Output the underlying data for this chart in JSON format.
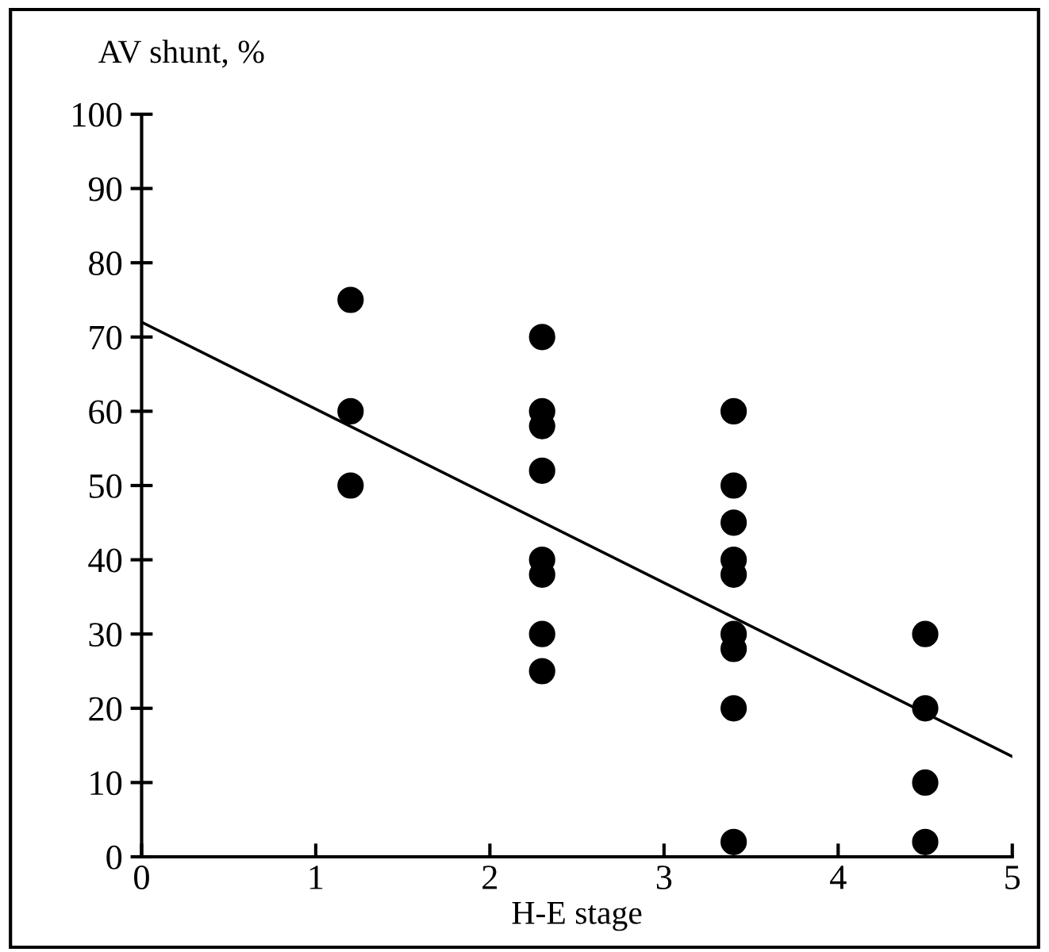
{
  "chart_data": {
    "type": "scatter",
    "xlabel": "H-E stage",
    "ylabel": "AV shunt, %",
    "marker": "circle",
    "grid": false,
    "xlim": [
      0,
      5
    ],
    "ylim": [
      0,
      100
    ],
    "xticks": [
      0,
      1,
      2,
      3,
      4,
      5
    ],
    "yticks": [
      0,
      10,
      20,
      30,
      40,
      50,
      60,
      70,
      80,
      90,
      100
    ],
    "series": [
      {
        "color": "#000000",
        "x": [
          1.2,
          1.2,
          1.2,
          2.3,
          2.3,
          2.3,
          2.3,
          2.3,
          2.3,
          2.3,
          2.3,
          3.4,
          3.4,
          3.4,
          3.4,
          3.4,
          3.4,
          3.4,
          3.4,
          3.4,
          4.5,
          4.5,
          4.5,
          4.5
        ],
        "values": [
          75,
          60,
          50,
          70,
          60,
          58,
          52,
          40,
          38,
          30,
          25,
          60,
          50,
          45,
          40,
          38,
          30,
          28,
          20,
          2,
          30,
          20,
          10,
          2
        ]
      },
      {
        "type": "line",
        "color": "#000000",
        "marker": "none",
        "x": [
          0,
          5
        ],
        "values": [
          72,
          13.5
        ]
      }
    ]
  }
}
